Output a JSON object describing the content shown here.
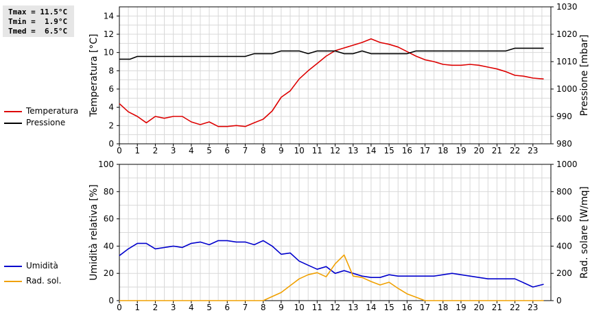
{
  "stats": {
    "tmax": "Tmax = 11.5°C",
    "tmin": "Tmin =  1.9°C",
    "tmed": "Tmed =  6.5°C"
  },
  "chart_data": [
    {
      "type": "line",
      "x_ticks": [
        "0",
        "1",
        "2",
        "3",
        "4",
        "5",
        "6",
        "7",
        "8",
        "9",
        "10",
        "11",
        "12",
        "13",
        "14",
        "15",
        "16",
        "17",
        "18",
        "19",
        "20",
        "21",
        "22",
        "23"
      ],
      "xlim": [
        0,
        24
      ],
      "ylabel_left": "Temperatura [°C]",
      "ylabel_right": "Pressione [mbar]",
      "ylim_left": [
        0,
        15
      ],
      "yticks_left": [
        "0",
        "2",
        "4",
        "6",
        "8",
        "10",
        "12",
        "14"
      ],
      "ylim_right": [
        980,
        1030
      ],
      "yticks_right": [
        "980",
        "990",
        "1000",
        "1010",
        "1020",
        "1030"
      ],
      "grid": true,
      "legend_position": "left",
      "series": [
        {
          "name": "Temperatura",
          "color": "#dd0000",
          "axis": "left",
          "points": [
            [
              0,
              4.4
            ],
            [
              0.5,
              3.5
            ],
            [
              1,
              3.0
            ],
            [
              1.5,
              2.3
            ],
            [
              2,
              3.0
            ],
            [
              2.5,
              2.8
            ],
            [
              3,
              3.0
            ],
            [
              3.5,
              3.0
            ],
            [
              4,
              2.4
            ],
            [
              4.5,
              2.1
            ],
            [
              5,
              2.4
            ],
            [
              5.5,
              1.9
            ],
            [
              6,
              1.9
            ],
            [
              6.5,
              2.0
            ],
            [
              7,
              1.9
            ],
            [
              7.5,
              2.3
            ],
            [
              8,
              2.7
            ],
            [
              8.5,
              3.6
            ],
            [
              9,
              5.1
            ],
            [
              9.5,
              5.8
            ],
            [
              10,
              7.1
            ],
            [
              10.5,
              8.0
            ],
            [
              11,
              8.8
            ],
            [
              11.5,
              9.6
            ],
            [
              12,
              10.2
            ],
            [
              12.5,
              10.5
            ],
            [
              13,
              10.8
            ],
            [
              13.5,
              11.1
            ],
            [
              14,
              11.5
            ],
            [
              14.5,
              11.1
            ],
            [
              15,
              10.9
            ],
            [
              15.5,
              10.6
            ],
            [
              16,
              10.1
            ],
            [
              16.5,
              9.6
            ],
            [
              17,
              9.2
            ],
            [
              17.5,
              9.0
            ],
            [
              18,
              8.7
            ],
            [
              18.5,
              8.6
            ],
            [
              19,
              8.6
            ],
            [
              19.5,
              8.7
            ],
            [
              20,
              8.6
            ],
            [
              20.5,
              8.4
            ],
            [
              21,
              8.2
            ],
            [
              21.5,
              7.9
            ],
            [
              22,
              7.5
            ],
            [
              22.5,
              7.4
            ],
            [
              23,
              7.2
            ],
            [
              23.6,
              7.1
            ]
          ]
        },
        {
          "name": "Pressione",
          "color": "#000000",
          "axis": "right",
          "points": [
            [
              0,
              1010.9
            ],
            [
              0.6,
              1010.9
            ],
            [
              1,
              1011.9
            ],
            [
              2,
              1011.9
            ],
            [
              3,
              1011.9
            ],
            [
              4,
              1011.9
            ],
            [
              5,
              1011.9
            ],
            [
              6,
              1011.9
            ],
            [
              7,
              1011.9
            ],
            [
              7.5,
              1012.9
            ],
            [
              8.5,
              1012.9
            ],
            [
              9,
              1013.9
            ],
            [
              10,
              1013.9
            ],
            [
              10.5,
              1012.9
            ],
            [
              11,
              1013.9
            ],
            [
              12,
              1013.9
            ],
            [
              12.5,
              1012.9
            ],
            [
              13,
              1012.9
            ],
            [
              13.5,
              1013.9
            ],
            [
              14,
              1012.9
            ],
            [
              15,
              1012.9
            ],
            [
              16,
              1012.9
            ],
            [
              16.5,
              1013.9
            ],
            [
              18,
              1013.9
            ],
            [
              20,
              1013.9
            ],
            [
              21.5,
              1013.9
            ],
            [
              22,
              1014.9
            ],
            [
              23.6,
              1014.9
            ]
          ]
        }
      ]
    },
    {
      "type": "line",
      "x_ticks": [
        "0",
        "1",
        "2",
        "3",
        "4",
        "5",
        "6",
        "7",
        "8",
        "9",
        "10",
        "11",
        "12",
        "13",
        "14",
        "15",
        "16",
        "17",
        "18",
        "19",
        "20",
        "21",
        "22",
        "23"
      ],
      "xlim": [
        0,
        24
      ],
      "ylabel_left": "Umidità relativa [%]",
      "ylabel_right": "Rad. solare [W/mq]",
      "ylim_left": [
        0,
        100
      ],
      "yticks_left": [
        "0",
        "20",
        "40",
        "60",
        "80",
        "100"
      ],
      "ylim_right": [
        0,
        1000
      ],
      "yticks_right": [
        "0",
        "200",
        "400",
        "600",
        "800",
        "1000"
      ],
      "grid": true,
      "legend_position": "left",
      "series": [
        {
          "name": "Umidità",
          "color": "#0000cc",
          "axis": "left",
          "points": [
            [
              0,
              33
            ],
            [
              0.5,
              38
            ],
            [
              1,
              42
            ],
            [
              1.5,
              42
            ],
            [
              2,
              38
            ],
            [
              2.5,
              39
            ],
            [
              3,
              40
            ],
            [
              3.5,
              39
            ],
            [
              4,
              42
            ],
            [
              4.5,
              43
            ],
            [
              5,
              41
            ],
            [
              5.5,
              44
            ],
            [
              6,
              44
            ],
            [
              6.5,
              43
            ],
            [
              7,
              43
            ],
            [
              7.5,
              41
            ],
            [
              8,
              44
            ],
            [
              8.5,
              40
            ],
            [
              9,
              34
            ],
            [
              9.5,
              35
            ],
            [
              10,
              29
            ],
            [
              10.5,
              26
            ],
            [
              11,
              23
            ],
            [
              11.5,
              25
            ],
            [
              12,
              20
            ],
            [
              12.5,
              22
            ],
            [
              13,
              20
            ],
            [
              13.5,
              18
            ],
            [
              14,
              17
            ],
            [
              14.5,
              17
            ],
            [
              15,
              19
            ],
            [
              15.5,
              18
            ],
            [
              16,
              18
            ],
            [
              17,
              18
            ],
            [
              17.5,
              18
            ],
            [
              18,
              19
            ],
            [
              18.5,
              20
            ],
            [
              19,
              19
            ],
            [
              19.5,
              18
            ],
            [
              20,
              17
            ],
            [
              20.5,
              16
            ],
            [
              21,
              16
            ],
            [
              21.5,
              16
            ],
            [
              22,
              16
            ],
            [
              22.5,
              13
            ],
            [
              23,
              10
            ],
            [
              23.6,
              12
            ]
          ]
        },
        {
          "name": "Rad. sol.",
          "color": "#f0a000",
          "axis": "right",
          "points": [
            [
              0,
              0
            ],
            [
              1,
              0
            ],
            [
              2,
              0
            ],
            [
              3,
              0
            ],
            [
              4,
              0
            ],
            [
              5,
              0
            ],
            [
              6,
              0
            ],
            [
              7,
              0
            ],
            [
              8,
              0
            ],
            [
              8.5,
              30
            ],
            [
              9,
              60
            ],
            [
              9.5,
              110
            ],
            [
              10,
              160
            ],
            [
              10.5,
              190
            ],
            [
              11,
              205
            ],
            [
              11.5,
              175
            ],
            [
              12,
              270
            ],
            [
              12.5,
              335
            ],
            [
              13,
              180
            ],
            [
              13.5,
              170
            ],
            [
              14,
              140
            ],
            [
              14.5,
              115
            ],
            [
              15,
              135
            ],
            [
              15.5,
              90
            ],
            [
              16,
              50
            ],
            [
              16.5,
              25
            ],
            [
              17,
              0
            ],
            [
              18,
              0
            ],
            [
              19,
              0
            ],
            [
              20,
              0
            ],
            [
              21,
              0
            ],
            [
              22,
              0
            ],
            [
              23,
              0
            ],
            [
              23.6,
              0
            ]
          ]
        }
      ]
    }
  ]
}
